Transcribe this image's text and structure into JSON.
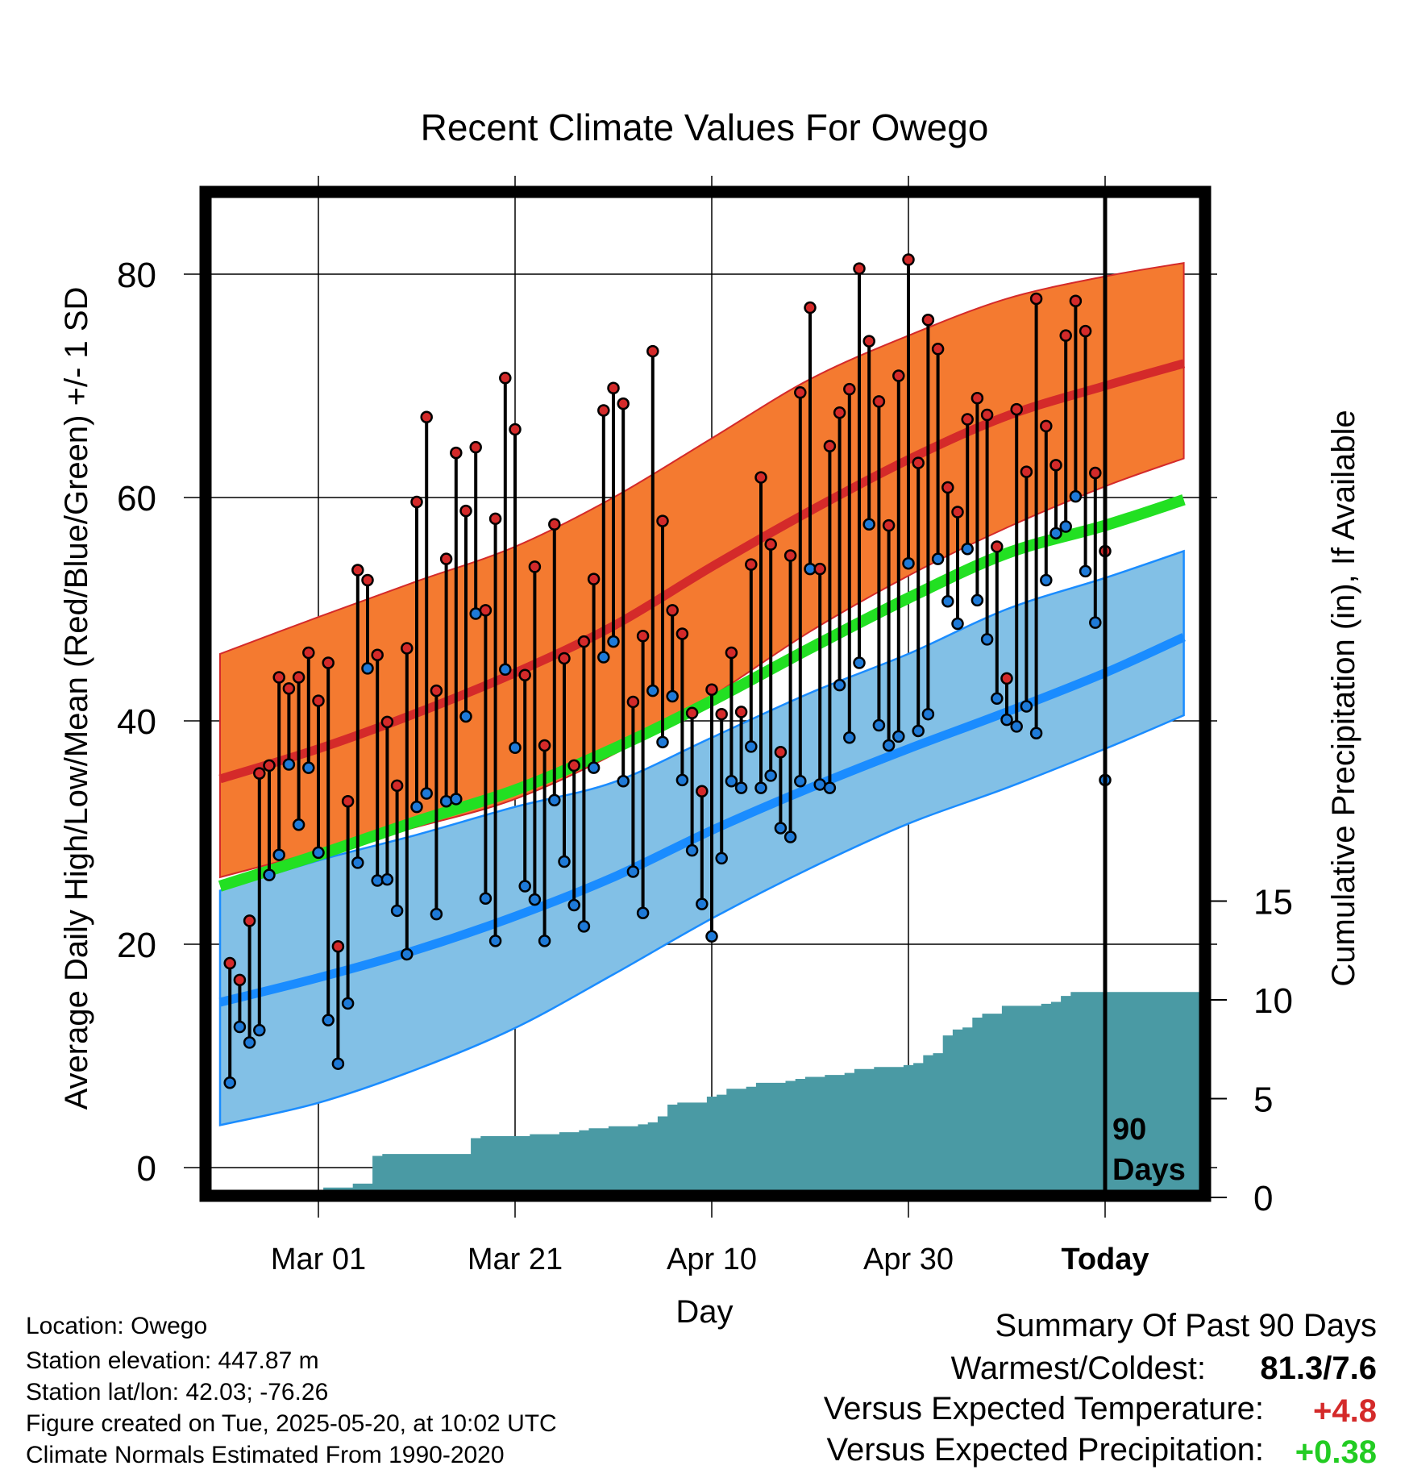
{
  "title": "Recent Climate Values For Owego",
  "y_label_left": "Average Daily High/Low/Mean (Red/Blue/Green) +/- 1 SD",
  "y_label_right": "Cumulative Precipitation (in), If Available",
  "x_label": "Day",
  "today_marker": {
    "line1": "90",
    "line2": "Days"
  },
  "meta": {
    "location": "Location: Owego",
    "elevation": "Station elevation: 447.87 m",
    "latlon": "Station lat/lon: 42.03; -76.26",
    "created": "Figure created on Tue, 2025-05-20, at 10:02 UTC",
    "normals": "Climate Normals Estimated From 1990-2020"
  },
  "summary": {
    "title": "Summary Of Past 90 Days",
    "warm_cold_label": "Warmest/Coldest:",
    "warm_cold_value": "81.3/7.6",
    "temp_label": "Versus Expected Temperature:",
    "temp_value": "+4.8",
    "precip_label": "Versus Expected Precipitation:",
    "precip_value": "+0.38"
  },
  "colors": {
    "high_band": "#f47a30",
    "high_mean": "#d42a2a",
    "low_band": "#82c0e6",
    "low_mean": "#1a8cff",
    "mean_line": "#22e022",
    "precip": "#4a9aa4",
    "high_dot": "#d42a2a",
    "low_dot": "#1e7ad8",
    "temp_anomaly": "#d42a2a",
    "precip_anomaly": "#22cc22"
  },
  "chart_data": {
    "type": "line",
    "x_axis": {
      "range_days": [
        -12,
        88
      ],
      "ticks": [
        {
          "day": 0,
          "label": "Mar 01"
        },
        {
          "day": 20,
          "label": "Mar 21"
        },
        {
          "day": 40,
          "label": "Apr 10"
        },
        {
          "day": 60,
          "label": "Apr 30"
        },
        {
          "day": 80,
          "label": "Today"
        }
      ]
    },
    "y_left": {
      "range": [
        -2,
        87
      ],
      "ticks": [
        0,
        20,
        40,
        60,
        80
      ]
    },
    "y_right": {
      "range": [
        0,
        30
      ],
      "ticks": [
        0,
        5,
        10,
        15
      ]
    },
    "today_day": 80,
    "normals": {
      "days": [
        -10,
        0,
        10,
        20,
        30,
        40,
        50,
        60,
        70,
        80,
        88
      ],
      "high_mean": [
        34.8,
        37.5,
        40.7,
        44.3,
        48.5,
        53.8,
        58.8,
        63.4,
        67.3,
        70.0,
        72.0
      ],
      "high_upper": [
        46.0,
        49.3,
        52.5,
        55.6,
        60.0,
        65.3,
        70.6,
        74.5,
        77.8,
        79.8,
        81.0
      ],
      "high_lower": [
        26.0,
        28.3,
        30.5,
        33.0,
        37.0,
        42.2,
        48.0,
        53.0,
        57.3,
        61.0,
        63.5
      ],
      "low_mean": [
        14.8,
        17.0,
        19.5,
        22.5,
        26.0,
        30.2,
        34.0,
        37.5,
        40.8,
        44.3,
        47.5
      ],
      "low_upper": [
        24.8,
        27.5,
        29.8,
        32.3,
        34.5,
        38.5,
        42.5,
        46.0,
        50.0,
        52.8,
        55.2
      ],
      "low_lower": [
        3.8,
        5.8,
        8.8,
        12.5,
        17.3,
        22.3,
        26.8,
        30.8,
        34.0,
        37.5,
        40.5
      ],
      "daily_mean": [
        25.2,
        28.0,
        31.0,
        33.8,
        37.5,
        41.8,
        46.5,
        51.0,
        55.0,
        57.5,
        59.8
      ]
    },
    "series": [
      {
        "name": "High",
        "values": [
          18.3,
          16.8,
          22.1,
          35.3,
          36.0,
          43.9,
          42.9,
          43.9,
          46.1,
          41.8,
          45.2,
          19.8,
          32.8,
          53.5,
          52.6,
          45.9,
          39.9,
          34.2,
          46.5,
          59.6,
          67.2,
          42.7,
          54.5,
          64.0,
          58.8,
          64.5,
          49.9,
          58.1,
          70.7,
          66.1,
          44.1,
          53.8,
          37.8,
          57.6,
          45.6,
          36.0,
          47.1,
          52.7,
          67.8,
          69.8,
          68.4,
          41.7,
          47.6,
          73.1,
          57.9,
          49.9,
          47.8,
          40.7,
          33.7,
          42.8,
          40.6,
          46.1,
          40.8,
          54.0,
          61.8,
          55.8,
          37.2,
          54.8,
          69.4,
          77.0,
          53.6,
          64.6,
          67.6,
          69.7,
          80.5,
          74.0,
          68.6,
          57.5,
          70.9,
          81.3,
          63.1,
          75.9,
          73.3,
          60.9,
          58.7,
          67.0,
          68.9,
          67.4,
          55.6,
          43.8,
          67.9,
          62.3,
          77.8,
          66.4,
          62.9,
          74.5,
          77.6,
          74.9,
          62.2,
          55.2
        ]
      },
      {
        "name": "Low",
        "values": [
          7.6,
          12.6,
          11.2,
          12.3,
          26.2,
          28.0,
          36.1,
          30.7,
          35.8,
          28.2,
          13.2,
          9.3,
          14.7,
          27.3,
          44.7,
          25.7,
          25.8,
          23.0,
          19.1,
          32.3,
          33.5,
          22.7,
          32.8,
          33.0,
          40.4,
          49.6,
          24.1,
          20.3,
          44.6,
          37.6,
          25.2,
          24.0,
          20.3,
          32.9,
          27.4,
          23.5,
          21.6,
          35.8,
          45.7,
          47.1,
          34.6,
          26.5,
          22.8,
          42.7,
          38.1,
          42.2,
          34.7,
          28.4,
          23.6,
          20.7,
          27.7,
          34.6,
          34.0,
          37.7,
          34.0,
          35.1,
          30.4,
          29.6,
          34.6,
          53.6,
          34.3,
          34.0,
          43.2,
          38.5,
          45.2,
          57.6,
          39.6,
          37.8,
          38.6,
          54.1,
          39.1,
          40.6,
          54.5,
          50.7,
          48.7,
          55.4,
          50.8,
          47.3,
          42.0,
          40.1,
          39.5,
          41.3,
          38.9,
          52.6,
          56.8,
          57.4,
          60.1,
          53.4,
          48.8,
          34.7
        ]
      },
      {
        "name": "Cumulative Precipitation",
        "values": [
          0.0,
          0.0,
          0.0,
          0.0,
          0.0,
          0.0,
          0.0,
          0.0,
          0.1,
          0.3,
          0.5,
          0.5,
          0.5,
          0.7,
          0.7,
          2.1,
          2.2,
          2.2,
          2.2,
          2.2,
          2.2,
          2.2,
          2.2,
          2.2,
          2.2,
          3.0,
          3.1,
          3.1,
          3.1,
          3.1,
          3.1,
          3.2,
          3.2,
          3.2,
          3.3,
          3.3,
          3.4,
          3.5,
          3.5,
          3.6,
          3.6,
          3.6,
          3.7,
          3.8,
          4.1,
          4.7,
          4.8,
          4.8,
          4.8,
          5.1,
          5.2,
          5.5,
          5.5,
          5.6,
          5.8,
          5.8,
          5.8,
          5.9,
          6.0,
          6.1,
          6.1,
          6.2,
          6.2,
          6.3,
          6.5,
          6.5,
          6.6,
          6.6,
          6.6,
          6.7,
          6.8,
          7.2,
          7.3,
          8.2,
          8.5,
          8.6,
          9.1,
          9.3,
          9.3,
          9.7,
          9.7,
          9.7,
          9.7,
          9.8,
          9.9,
          10.2,
          10.4,
          10.4,
          10.4,
          10.4
        ]
      }
    ]
  }
}
